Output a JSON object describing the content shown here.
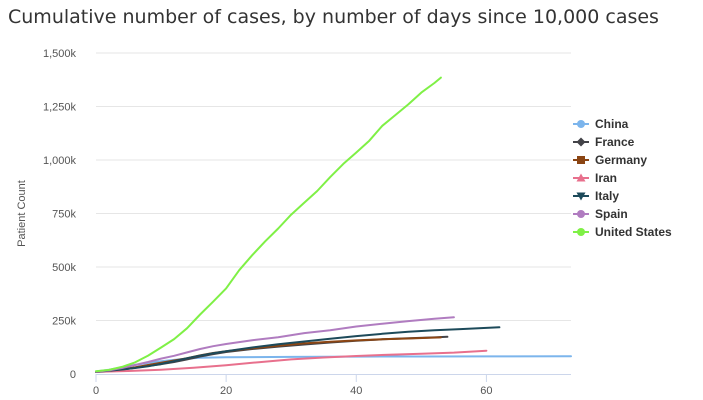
{
  "chart_data": {
    "type": "line",
    "title": "Cumulative number of cases, by number of days since 10,000 cases",
    "xlabel": "",
    "ylabel": "Patient Count",
    "xlim": [
      0,
      73
    ],
    "ylim": [
      0,
      1500000
    ],
    "x_ticks": [
      0,
      20,
      40,
      60
    ],
    "y_ticks": [
      0,
      250000,
      500000,
      750000,
      1000000,
      1250000,
      1500000
    ],
    "x_tick_labels": [
      "0",
      "20",
      "40",
      "60"
    ],
    "y_tick_labels": [
      "0",
      "250k",
      "500k",
      "750k",
      "1,000k",
      "1,250k",
      "1,500k"
    ],
    "grid": "horizontal",
    "legend_position": "right",
    "series": [
      {
        "name": "China",
        "color": "#7cb5ec",
        "marker": "circle",
        "points": [
          [
            0,
            11800
          ],
          [
            2,
            20000
          ],
          [
            4,
            31000
          ],
          [
            6,
            42000
          ],
          [
            8,
            52000
          ],
          [
            10,
            60000
          ],
          [
            12,
            66000
          ],
          [
            14,
            72000
          ],
          [
            16,
            76000
          ],
          [
            20,
            78000
          ],
          [
            30,
            80000
          ],
          [
            40,
            81500
          ],
          [
            50,
            82000
          ],
          [
            60,
            82300
          ],
          [
            73,
            82500
          ]
        ]
      },
      {
        "name": "France",
        "color": "#434348",
        "marker": "diamond",
        "points": [
          [
            0,
            10000
          ],
          [
            2,
            14000
          ],
          [
            4,
            20000
          ],
          [
            6,
            29000
          ],
          [
            8,
            38000
          ],
          [
            10,
            46000
          ],
          [
            12,
            56000
          ],
          [
            14,
            68000
          ],
          [
            16,
            82000
          ],
          [
            18,
            93000
          ],
          [
            20,
            103000
          ],
          [
            24,
            117000
          ],
          [
            28,
            128000
          ],
          [
            32,
            138000
          ],
          [
            36,
            147000
          ],
          [
            40,
            155000
          ],
          [
            44,
            162000
          ],
          [
            48,
            167000
          ],
          [
            52,
            171000
          ],
          [
            54,
            174000
          ]
        ]
      },
      {
        "name": "Germany",
        "color": "#8b4513",
        "marker": "square",
        "points": [
          [
            0,
            10000
          ],
          [
            2,
            15000
          ],
          [
            4,
            22000
          ],
          [
            6,
            31000
          ],
          [
            8,
            42000
          ],
          [
            10,
            53000
          ],
          [
            12,
            63000
          ],
          [
            14,
            74000
          ],
          [
            16,
            87000
          ],
          [
            18,
            98000
          ],
          [
            20,
            106000
          ],
          [
            24,
            120000
          ],
          [
            28,
            132000
          ],
          [
            32,
            143000
          ],
          [
            36,
            151000
          ],
          [
            40,
            157000
          ],
          [
            44,
            162000
          ],
          [
            48,
            166000
          ],
          [
            53,
            171000
          ]
        ]
      },
      {
        "name": "Iran",
        "color": "#e8708d",
        "marker": "triangle",
        "points": [
          [
            0,
            10000
          ],
          [
            5,
            14000
          ],
          [
            10,
            20000
          ],
          [
            15,
            29000
          ],
          [
            20,
            41000
          ],
          [
            25,
            55000
          ],
          [
            30,
            68000
          ],
          [
            35,
            77000
          ],
          [
            40,
            84000
          ],
          [
            45,
            90000
          ],
          [
            50,
            95000
          ],
          [
            55,
            100000
          ],
          [
            60,
            109000
          ]
        ]
      },
      {
        "name": "Italy",
        "color": "#1d4a5a",
        "marker": "triangle-down",
        "points": [
          [
            0,
            10000
          ],
          [
            2,
            15000
          ],
          [
            4,
            21000
          ],
          [
            6,
            28000
          ],
          [
            8,
            36000
          ],
          [
            10,
            47000
          ],
          [
            12,
            60000
          ],
          [
            14,
            74000
          ],
          [
            16,
            86000
          ],
          [
            18,
            97000
          ],
          [
            20,
            106000
          ],
          [
            24,
            124000
          ],
          [
            28,
            139000
          ],
          [
            32,
            152000
          ],
          [
            36,
            165000
          ],
          [
            40,
            177000
          ],
          [
            44,
            188000
          ],
          [
            48,
            197000
          ],
          [
            52,
            204000
          ],
          [
            56,
            210000
          ],
          [
            62,
            218000
          ]
        ]
      },
      {
        "name": "Spain",
        "color": "#b07cc0",
        "marker": "circle",
        "points": [
          [
            0,
            11000
          ],
          [
            2,
            17000
          ],
          [
            4,
            28000
          ],
          [
            6,
            42000
          ],
          [
            8,
            56000
          ],
          [
            10,
            72000
          ],
          [
            12,
            85000
          ],
          [
            14,
            101000
          ],
          [
            16,
            117000
          ],
          [
            18,
            130000
          ],
          [
            20,
            140000
          ],
          [
            24,
            158000
          ],
          [
            28,
            172000
          ],
          [
            32,
            191000
          ],
          [
            36,
            204000
          ],
          [
            40,
            222000
          ],
          [
            44,
            235000
          ],
          [
            48,
            247000
          ],
          [
            52,
            258000
          ],
          [
            55,
            265000
          ]
        ]
      },
      {
        "name": "United States",
        "color": "#7ff046",
        "marker": "circle",
        "points": [
          [
            0,
            13000
          ],
          [
            2,
            19000
          ],
          [
            4,
            33000
          ],
          [
            6,
            54000
          ],
          [
            8,
            86000
          ],
          [
            10,
            124000
          ],
          [
            12,
            163000
          ],
          [
            14,
            214000
          ],
          [
            16,
            278000
          ],
          [
            18,
            338000
          ],
          [
            20,
            400000
          ],
          [
            22,
            485000
          ],
          [
            24,
            555000
          ],
          [
            26,
            620000
          ],
          [
            28,
            680000
          ],
          [
            30,
            745000
          ],
          [
            32,
            800000
          ],
          [
            34,
            855000
          ],
          [
            36,
            920000
          ],
          [
            38,
            982000
          ],
          [
            40,
            1035000
          ],
          [
            42,
            1090000
          ],
          [
            44,
            1160000
          ],
          [
            46,
            1210000
          ],
          [
            48,
            1260000
          ],
          [
            50,
            1315000
          ],
          [
            52,
            1360000
          ],
          [
            53,
            1385000
          ]
        ]
      }
    ]
  }
}
